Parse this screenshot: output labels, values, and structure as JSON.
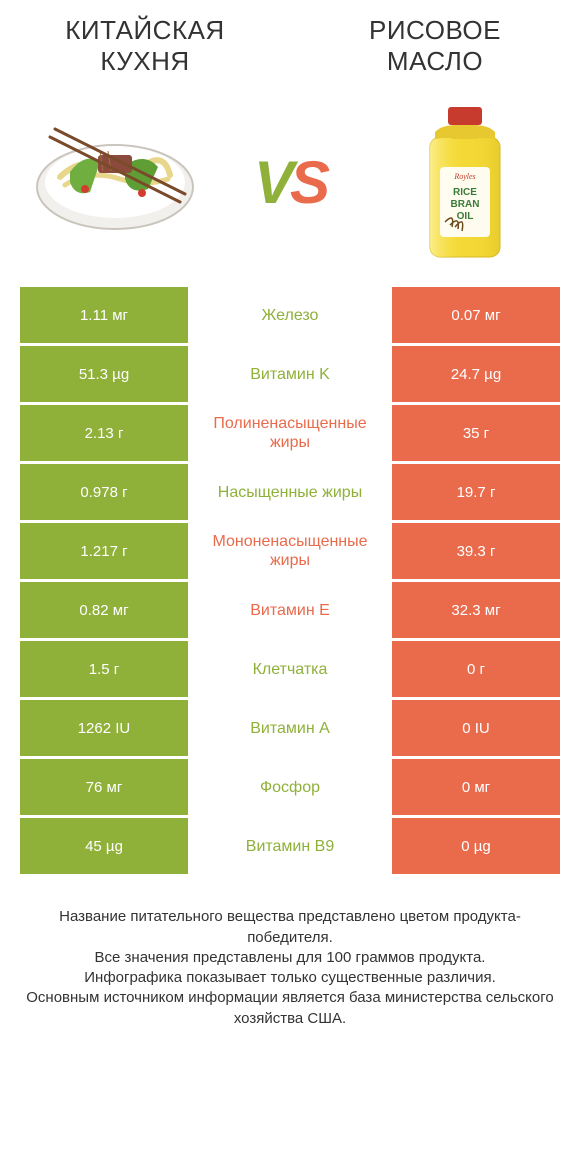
{
  "colors": {
    "left": "#8fb13a",
    "right": "#e96b4c",
    "text": "#333333",
    "bg": "#ffffff"
  },
  "header": {
    "left_title": "КИТАЙСКАЯ КУХНЯ",
    "right_title": "РИСОВОЕ МАСЛО",
    "vs_v": "V",
    "vs_s": "S"
  },
  "rows": [
    {
      "left": "1.11 мг",
      "label": "Железо",
      "right": "0.07 мг",
      "winner": "l"
    },
    {
      "left": "51.3 µg",
      "label": "Витамин K",
      "right": "24.7 µg",
      "winner": "l"
    },
    {
      "left": "2.13 г",
      "label": "Полиненасыщенные жиры",
      "right": "35 г",
      "winner": "r"
    },
    {
      "left": "0.978 г",
      "label": "Насыщенные жиры",
      "right": "19.7 г",
      "winner": "l"
    },
    {
      "left": "1.217 г",
      "label": "Мононенасыщенные жиры",
      "right": "39.3 г",
      "winner": "r"
    },
    {
      "left": "0.82 мг",
      "label": "Витамин E",
      "right": "32.3 мг",
      "winner": "r"
    },
    {
      "left": "1.5 г",
      "label": "Клетчатка",
      "right": "0 г",
      "winner": "l"
    },
    {
      "left": "1262 IU",
      "label": "Витамин A",
      "right": "0 IU",
      "winner": "l"
    },
    {
      "left": "76 мг",
      "label": "Фосфор",
      "right": "0 мг",
      "winner": "l"
    },
    {
      "left": "45 µg",
      "label": "Витамин B9",
      "right": "0 µg",
      "winner": "l"
    }
  ],
  "footer": {
    "l1": "Название питательного вещества представлено цветом продукта-победителя.",
    "l2": "Все значения представлены для 100 граммов продукта.",
    "l3": "Инфографика показывает только существенные различия.",
    "l4": "Основным источником информации является база министерства сельского хозяйства США."
  },
  "icons": {
    "left_alt": "bowl-of-noodles",
    "right_alt": "rice-bran-oil-bottle"
  }
}
